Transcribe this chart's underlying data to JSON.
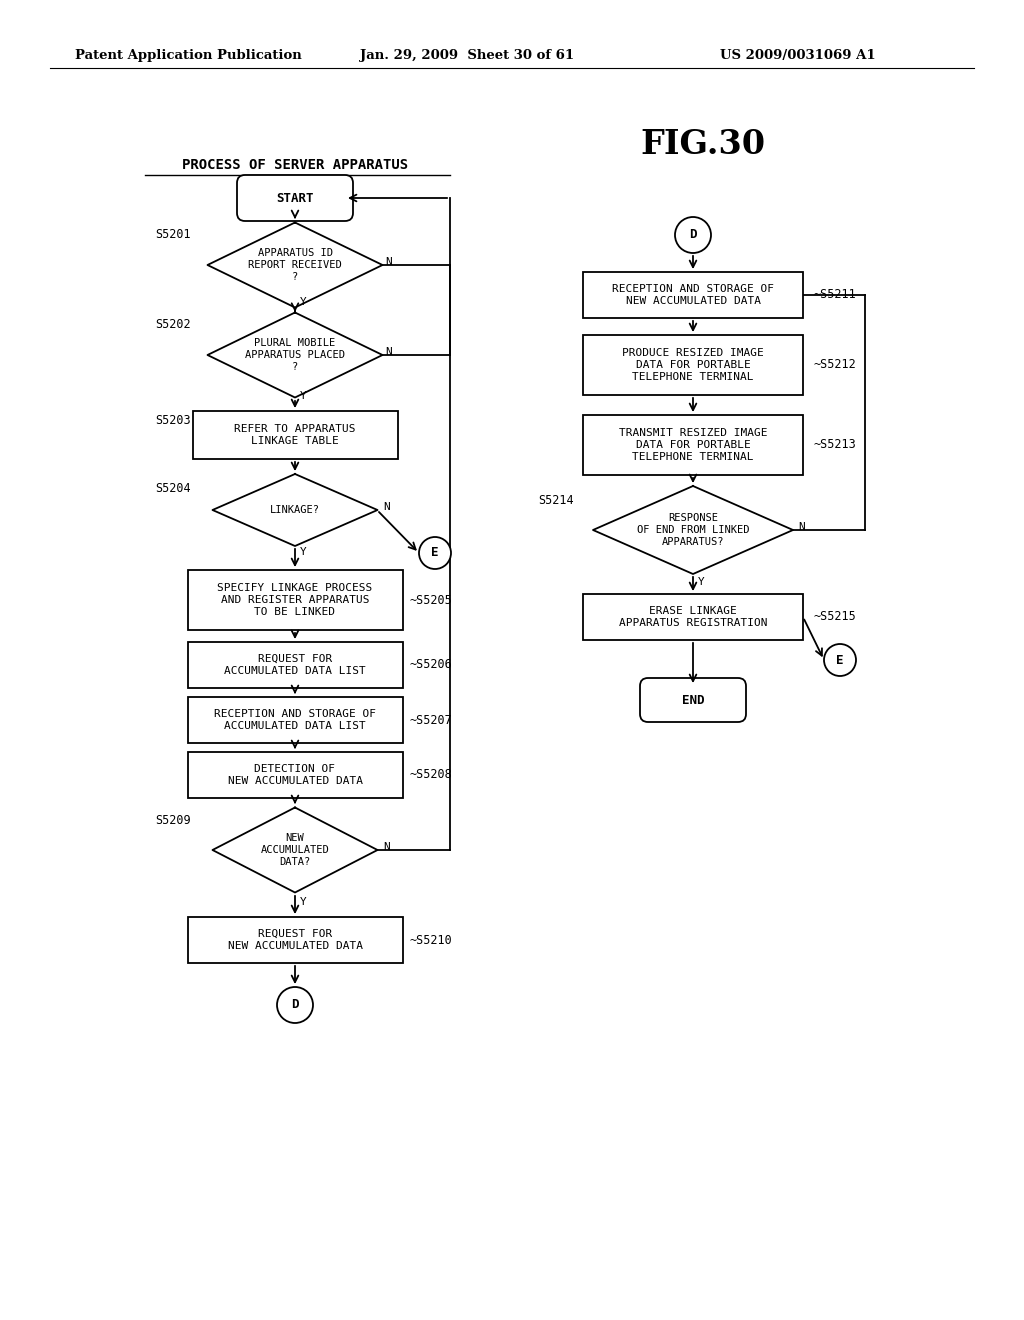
{
  "bg_color": "#ffffff",
  "title_text": "FIG.30",
  "header_left": "Patent Application Publication",
  "header_center": "Jan. 29, 2009  Sheet 30 of 61",
  "header_right": "US 2009/0031069 A1",
  "process_title": "PROCESS OF SERVER APPARATUS"
}
